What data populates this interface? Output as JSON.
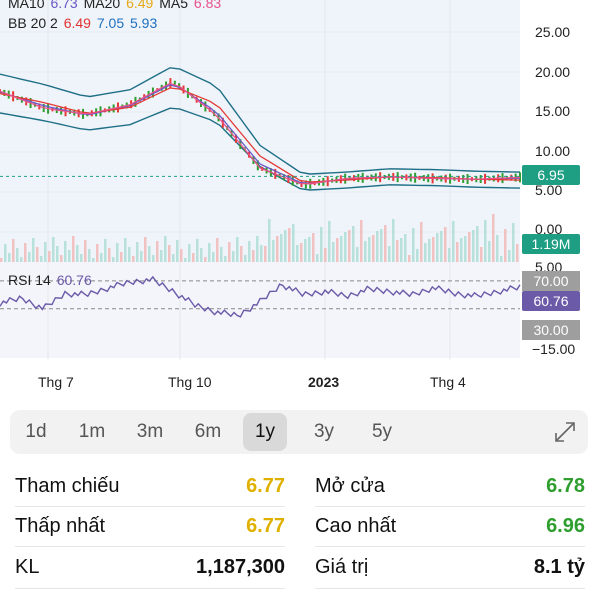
{
  "legend": {
    "ma_line": [
      {
        "label": "MA10",
        "value": "6.73",
        "color": "#6b56c7"
      },
      {
        "label": "MA20",
        "value": "6.49",
        "color": "#e6a817"
      },
      {
        "label": "MA5",
        "value": "6.83",
        "color": "#e8528a"
      }
    ],
    "bb_label": "BB 20 2",
    "bb_values": [
      {
        "value": "6.49",
        "color": "#e03131"
      },
      {
        "value": "7.05",
        "color": "#1f6fbf"
      },
      {
        "value": "5.93",
        "color": "#1f6fbf"
      }
    ],
    "rsi_label": "RSI 14",
    "rsi_value": "60.76"
  },
  "price_axis": [
    "25.00",
    "20.00",
    "15.00",
    "10.00",
    "5.00",
    "0.00"
  ],
  "current_price": "6.95",
  "volume_badge": "1.19M",
  "rsi_axis": {
    "top": "5.00",
    "upper": "70.00",
    "current": "60.76",
    "lower": "30.00",
    "bottom": "−15.00"
  },
  "time_axis": [
    "Thg 7",
    "Thg 10",
    "2023",
    "Thg 4"
  ],
  "periods": [
    "1d",
    "1m",
    "3m",
    "6m",
    "1y",
    "3y",
    "5y"
  ],
  "active_period": "1y",
  "stats": {
    "ref_label": "Tham chiếu",
    "ref_value": "6.77",
    "open_label": "Mở cửa",
    "open_value": "6.78",
    "low_label": "Thấp nhất",
    "low_value": "6.77",
    "high_label": "Cao nhất",
    "high_value": "6.96",
    "vol_label": "KL",
    "vol_value": "1,187,300",
    "val_label": "Giá trị",
    "val_value": "8.1 tỷ"
  },
  "colors": {
    "up": "#2e9e2e",
    "ref": "#e0b000",
    "price_badge": "#1e9e83",
    "bb_line": "#1f6f86",
    "ma_red": "#e53935",
    "rsi_line": "#6b5aa8"
  },
  "chart_data": {
    "type": "line",
    "x": [
      "2022-05",
      "2022-06",
      "2022-07",
      "2022-08",
      "2022-09",
      "2022-10",
      "2022-11",
      "2022-12",
      "2023-01",
      "2023-02",
      "2023-03",
      "2023-04",
      "2023-05"
    ],
    "series": [
      {
        "name": "MA10",
        "values": [
          17.5,
          15.8,
          14.6,
          15.8,
          18.6,
          15.0,
          8.5,
          6.0,
          6.6,
          6.9,
          6.7,
          6.6,
          6.73
        ]
      },
      {
        "name": "MA20",
        "values": [
          17.3,
          16.2,
          14.8,
          15.6,
          18.2,
          16.0,
          9.5,
          6.2,
          6.5,
          6.9,
          6.8,
          6.6,
          6.49
        ]
      },
      {
        "name": "MA5",
        "values": [
          17.6,
          15.5,
          14.7,
          15.9,
          18.8,
          14.6,
          8.0,
          5.9,
          6.7,
          6.9,
          6.7,
          6.6,
          6.83
        ]
      }
    ],
    "ylim": [
      0,
      27
    ],
    "current": 6.95,
    "rsi": {
      "name": "RSI 14",
      "last": 60.76,
      "upper": 70,
      "lower": 30,
      "ylim": [
        -15,
        100
      ]
    }
  }
}
